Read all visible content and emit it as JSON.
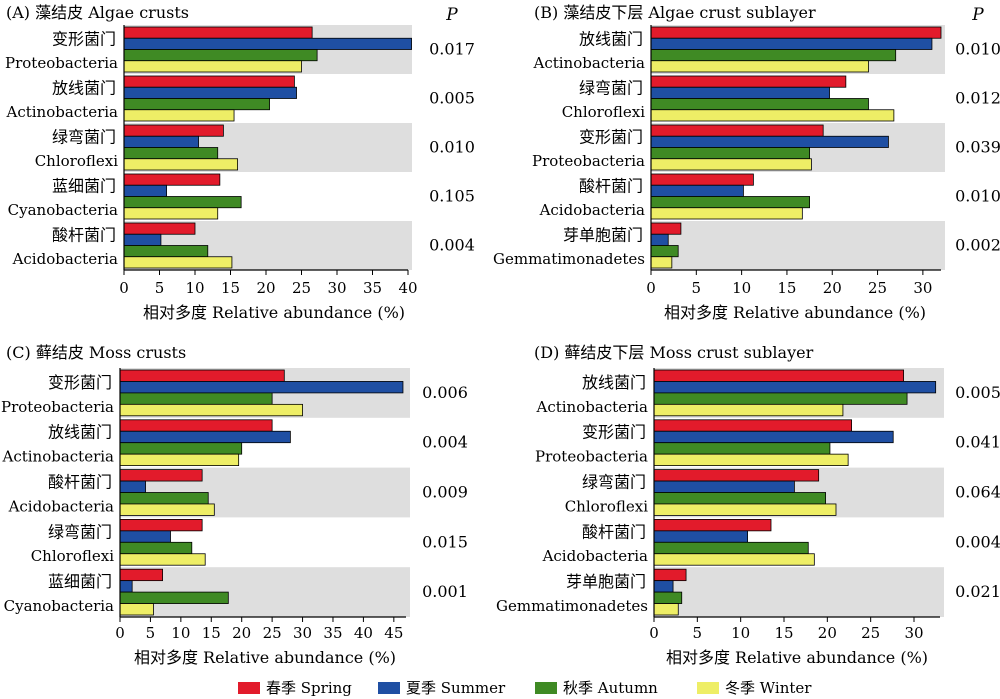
{
  "colors": {
    "spring": "#e21b2b",
    "summer": "#1f4fa3",
    "autumn": "#3f8a24",
    "winter": "#eeee66",
    "band": "#dedede"
  },
  "legend": [
    {
      "label": "春季 Spring",
      "color": "#e21b2b"
    },
    {
      "label": "夏季 Summer",
      "color": "#1f4fa3"
    },
    {
      "label": "秋季 Autumn",
      "color": "#3f8a24"
    },
    {
      "label": "冬季 Winter",
      "color": "#eeee66"
    }
  ],
  "chart_data": [
    {
      "type": "bar",
      "title": "(A) 藻结皮 Algae crusts",
      "xlabel": "相对多度 Relative abundance (%)",
      "p_header": "P",
      "xlim": [
        0,
        40
      ],
      "xticks": [
        "0",
        "5",
        "10",
        "15",
        "20",
        "25",
        "30",
        "35",
        "40"
      ],
      "groups": [
        {
          "cn": "变形菌门",
          "en": "Proteobacteria",
          "p": "0.017",
          "values": [
            26.5,
            40.5,
            27.2,
            25.0
          ]
        },
        {
          "cn": "放线菌门",
          "en": "Actinobacteria",
          "p": "0.005",
          "values": [
            24.0,
            24.3,
            20.5,
            15.5
          ]
        },
        {
          "cn": "绿弯菌门",
          "en": "Chloroflexi",
          "p": "0.010",
          "values": [
            14.0,
            10.5,
            13.2,
            16.0
          ]
        },
        {
          "cn": "蓝细菌门",
          "en": "Cyanobacteria",
          "p": "0.105",
          "values": [
            13.5,
            6.0,
            16.5,
            13.2
          ]
        },
        {
          "cn": "酸杆菌门",
          "en": "Acidobacteria",
          "p": "0.004",
          "values": [
            10.0,
            5.2,
            11.8,
            15.2
          ]
        }
      ]
    },
    {
      "type": "bar",
      "title": "(B) 藻结皮下层 Algae crust sublayer",
      "xlabel": "相对多度  Relative abundance (%)",
      "p_header": "P",
      "xlim": [
        0,
        32
      ],
      "xticks": [
        "0",
        "5",
        "10",
        "15",
        "20",
        "25",
        "30"
      ],
      "groups": [
        {
          "cn": "放线菌门",
          "en": "Actinobacteria",
          "p": "0.010",
          "values": [
            32.0,
            31.0,
            27.0,
            24.0
          ]
        },
        {
          "cn": "绿弯菌门",
          "en": "Chloroflexi",
          "p": "0.012",
          "values": [
            21.5,
            19.7,
            24.0,
            26.8
          ]
        },
        {
          "cn": "变形菌门",
          "en": "Proteobacteria",
          "p": "0.039",
          "values": [
            19.0,
            26.2,
            17.5,
            17.7
          ]
        },
        {
          "cn": "酸杆菌门",
          "en": "Acidobacteria",
          "p": "0.010",
          "values": [
            11.3,
            10.2,
            17.5,
            16.7
          ]
        },
        {
          "cn": "芽单胞菌门",
          "en": "Gemmatimonadetes",
          "p": "0.002",
          "values": [
            3.3,
            1.9,
            3.0,
            2.3
          ]
        }
      ]
    },
    {
      "type": "bar",
      "title": "(C) 藓结皮 Moss crusts",
      "xlabel": "相对多度 Relative abundance (%)",
      "p_header": "",
      "xlim": [
        0,
        47
      ],
      "xticks": [
        "0",
        "5",
        "10",
        "15",
        "20",
        "25",
        "30",
        "35",
        "40",
        "45"
      ],
      "groups": [
        {
          "cn": "变形菌门",
          "en": "Proteobacteria",
          "p": "0.006",
          "values": [
            27.0,
            46.5,
            25.0,
            30.0
          ]
        },
        {
          "cn": "放线菌门",
          "en": "Actinobacteria",
          "p": "0.004",
          "values": [
            25.0,
            28.0,
            20.0,
            19.5
          ]
        },
        {
          "cn": "酸杆菌门",
          "en": "Acidobacteria",
          "p": "0.009",
          "values": [
            13.5,
            4.2,
            14.5,
            15.5
          ]
        },
        {
          "cn": "绿弯菌门",
          "en": "Chloroflexi",
          "p": "0.015",
          "values": [
            13.5,
            8.3,
            11.8,
            14.0
          ]
        },
        {
          "cn": "蓝细菌门",
          "en": "Cyanobacteria",
          "p": "0.001",
          "values": [
            7.0,
            2.0,
            17.8,
            5.5
          ]
        }
      ]
    },
    {
      "type": "bar",
      "title": "(D) 藓结皮下层  Moss crust sublayer",
      "xlabel": "相对多度 Relative abundance (%)",
      "p_header": "",
      "xlim": [
        0,
        33
      ],
      "xticks": [
        "0",
        "5",
        "10",
        "15",
        "20",
        "25",
        "30"
      ],
      "groups": [
        {
          "cn": "放线菌门",
          "en": "Actinobacteria",
          "p": "0.005",
          "values": [
            28.8,
            32.5,
            29.2,
            21.8
          ]
        },
        {
          "cn": "变形菌门",
          "en": "Proteobacteria",
          "p": "0.041",
          "values": [
            22.8,
            27.6,
            20.3,
            22.4
          ]
        },
        {
          "cn": "绿弯菌门",
          "en": "Chloroflexi",
          "p": "0.064",
          "values": [
            19.0,
            16.2,
            19.8,
            21.0
          ]
        },
        {
          "cn": "酸杆菌门",
          "en": "Acidobacteria",
          "p": "0.004",
          "values": [
            13.5,
            10.8,
            17.8,
            18.5
          ]
        },
        {
          "cn": "芽单胞菌门",
          "en": "Gemmatimonadetes",
          "p": "0.021",
          "values": [
            3.7,
            2.2,
            3.2,
            2.8
          ]
        }
      ]
    }
  ]
}
